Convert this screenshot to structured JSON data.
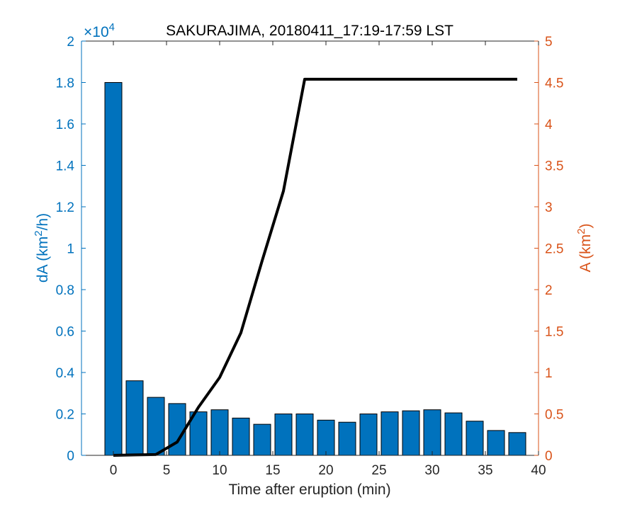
{
  "chart_data": {
    "type": "bar",
    "title": "SAKURAJIMA, 20180411_17:19-17:59 LST",
    "xlabel": "Time after eruption (min)",
    "ylabel_left": "dA (km",
    "ylabel_left_sup": "2",
    "ylabel_left_end": "/h)",
    "ylabel_right": "A (km",
    "ylabel_right_sup": "2",
    "ylabel_right_end": ")",
    "exponent_prefix": "×10",
    "exponent_sup": "4",
    "xlim": [
      -3,
      40
    ],
    "ylim_left": [
      0,
      2
    ],
    "ylim_right": [
      0,
      5
    ],
    "xticks": [
      "0",
      "5",
      "10",
      "15",
      "20",
      "25",
      "30",
      "35",
      "40"
    ],
    "yticks_left": [
      "0",
      "0.2",
      "0.4",
      "0.6",
      "0.8",
      "1",
      "1.2",
      "1.4",
      "1.6",
      "1.8",
      "2"
    ],
    "yticks_right": [
      "0",
      "0.5",
      "1",
      "1.5",
      "2",
      "2.5",
      "3",
      "3.5",
      "4",
      "4.5",
      "5"
    ],
    "colors": {
      "bars": "#0072BD",
      "right_axis": "#D95319",
      "line": "#000000"
    },
    "series": [
      {
        "axis": "left",
        "type": "bar",
        "x": [
          0,
          2,
          4,
          6,
          8,
          10,
          12,
          14,
          16,
          18,
          20,
          22,
          24,
          26,
          28,
          30,
          32,
          34,
          36,
          38
        ],
        "values": [
          1.8,
          0.36,
          0.28,
          0.25,
          0.21,
          0.22,
          0.18,
          0.15,
          0.2,
          0.2,
          0.17,
          0.16,
          0.2,
          0.21,
          0.215,
          0.22,
          0.205,
          0.165,
          0.12,
          0.11
        ]
      },
      {
        "axis": "right",
        "type": "line",
        "x": [
          0,
          2,
          4,
          6,
          8,
          10,
          12,
          14,
          16,
          18,
          20,
          22,
          24,
          26,
          28,
          30,
          32,
          34,
          36,
          38
        ],
        "values": [
          0,
          0.005,
          0.01,
          0.16,
          0.58,
          0.94,
          1.48,
          2.35,
          3.19,
          4.54,
          4.54,
          4.54,
          4.54,
          4.54,
          4.54,
          4.54,
          4.54,
          4.54,
          4.54,
          4.54
        ]
      }
    ]
  }
}
